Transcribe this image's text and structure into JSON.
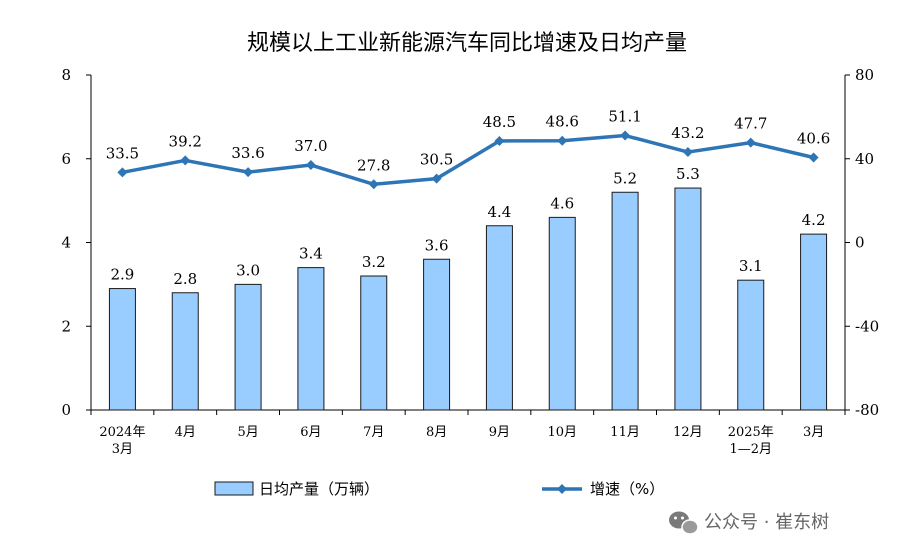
{
  "chart_data": {
    "type": "bar",
    "title": "规模以上工业新能源汽车同比增速及日均产量",
    "categories": [
      [
        "2024年",
        "3月"
      ],
      [
        "4月"
      ],
      [
        "5月"
      ],
      [
        "6月"
      ],
      [
        "7月"
      ],
      [
        "8月"
      ],
      [
        "9月"
      ],
      [
        "10月"
      ],
      [
        "11月"
      ],
      [
        "12月"
      ],
      [
        "2025年",
        "1—2月"
      ],
      [
        "3月"
      ]
    ],
    "y_left": {
      "min": 0,
      "max": 8,
      "ticks": [
        "0",
        "2",
        "4",
        "6",
        "8"
      ]
    },
    "y_right": {
      "min": -80,
      "max": 80,
      "ticks": [
        "-80",
        "-40",
        "0",
        "40",
        "80"
      ]
    },
    "series": [
      {
        "name": "日均产量（万辆）",
        "type": "bar",
        "axis": "left",
        "values": [
          2.9,
          2.8,
          3.0,
          3.4,
          3.2,
          3.6,
          4.4,
          4.6,
          5.2,
          5.3,
          3.1,
          4.2
        ],
        "labels": [
          "2.9",
          "2.8",
          "3.0",
          "3.4",
          "3.2",
          "3.6",
          "4.4",
          "4.6",
          "5.2",
          "5.3",
          "3.1",
          "4.2"
        ],
        "color": "#99ccff",
        "border": "#1a1a1a"
      },
      {
        "name": "增速（%）",
        "type": "line",
        "axis": "right",
        "values": [
          33.5,
          39.2,
          33.6,
          37.0,
          27.8,
          30.5,
          48.5,
          48.6,
          51.1,
          43.2,
          47.7,
          40.6
        ],
        "labels": [
          "33.5",
          "39.2",
          "33.6",
          "37.0",
          "27.8",
          "30.5",
          "48.5",
          "48.6",
          "51.1",
          "43.2",
          "47.7",
          "40.6"
        ],
        "color": "#2e75b6",
        "marker": "diamond"
      }
    ],
    "grid": false,
    "legend": "bottom"
  },
  "watermark": "公众号 · 崔东树"
}
